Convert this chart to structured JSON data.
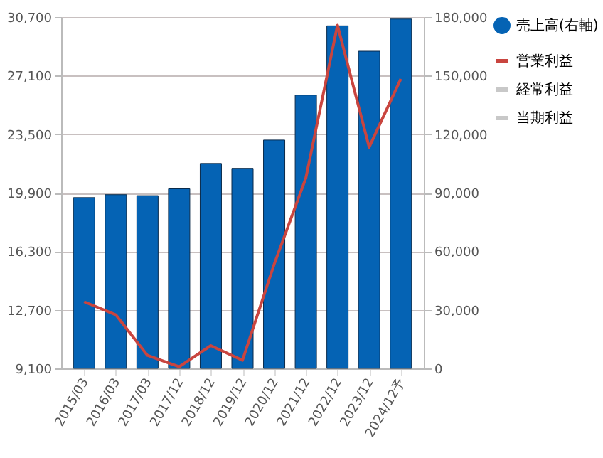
{
  "chart_data": {
    "type": "bar",
    "categories": [
      "2015/03",
      "2016/03",
      "2017/03",
      "2017/12",
      "2018/12",
      "2019/12",
      "2020/12",
      "2021/12",
      "2022/12",
      "2023/12",
      "2024/12予"
    ],
    "series": [
      {
        "name": "売上高(右軸)",
        "axis": "y2",
        "color": "#0563b4",
        "values": [
          87500,
          89000,
          88500,
          92000,
          105000,
          102500,
          117000,
          140000,
          175500,
          162500,
          179000
        ]
      },
      {
        "name": "営業利益",
        "type": "line",
        "color": "#c9453f",
        "values": [
          13200,
          12400,
          9900,
          9200,
          10500,
          9600,
          15500,
          20800,
          30200,
          22700,
          26900
        ]
      },
      {
        "name": "経常利益",
        "type": "line",
        "color": "#c8c8c8",
        "values": [
          null,
          null,
          null,
          null,
          null,
          null,
          null,
          null,
          null,
          null,
          null
        ]
      },
      {
        "name": "当期利益",
        "type": "line",
        "color": "#c8c8c8",
        "values": [
          null,
          null,
          null,
          null,
          null,
          null,
          null,
          null,
          null,
          null,
          null
        ]
      }
    ],
    "ylim": [
      9100,
      30700
    ],
    "yticks": [
      {
        "value": 9100,
        "label": "9,100"
      },
      {
        "value": 12700,
        "label": "12,700"
      },
      {
        "value": 16300,
        "label": "16,300"
      },
      {
        "value": 19900,
        "label": "19,900"
      },
      {
        "value": 23500,
        "label": "23,500"
      },
      {
        "value": 27100,
        "label": "27,100"
      },
      {
        "value": 30700,
        "label": "30,700"
      }
    ],
    "y2lim": [
      0,
      180000
    ],
    "y2ticks": [
      0,
      {
        "value": 30000,
        "label": "30,000"
      },
      {
        "value": 60000,
        "label": "60,000"
      },
      {
        "value": 90000,
        "label": "90,000"
      },
      {
        "value": 120000,
        "label": "120,000"
      },
      {
        "value": 150000,
        "label": "150,000"
      },
      {
        "value": 180000,
        "label": "180,000"
      }
    ],
    "grid": "y",
    "legend": "right"
  }
}
